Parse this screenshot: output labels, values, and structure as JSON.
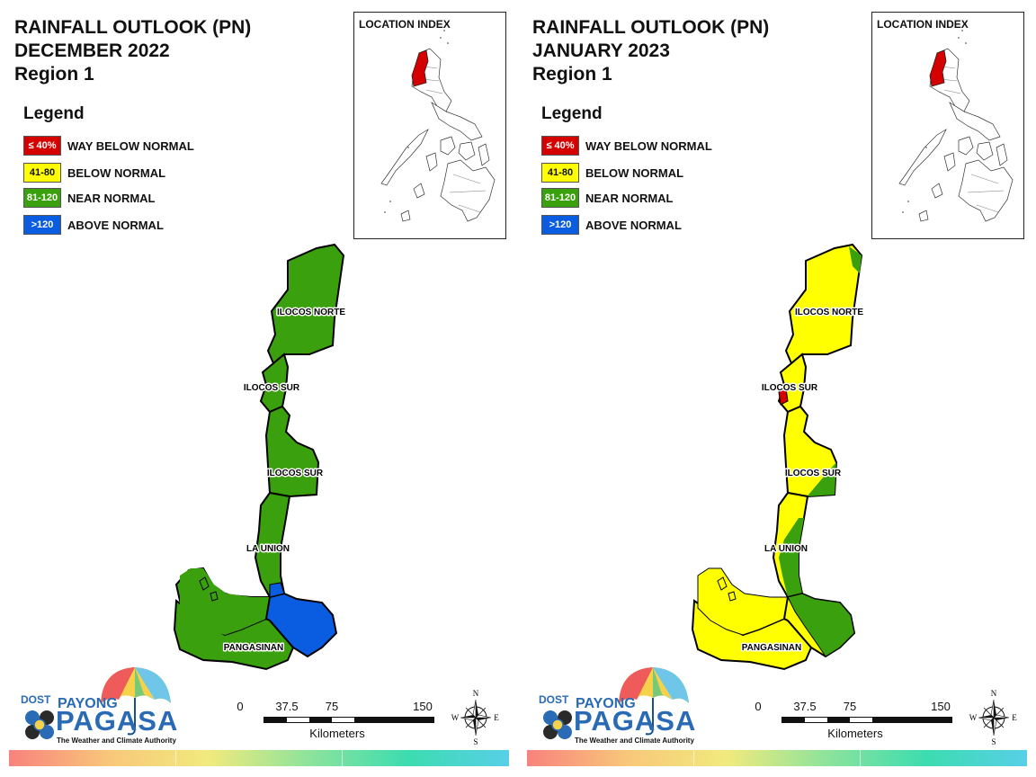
{
  "maps": [
    {
      "title_line1": "RAINFALL OUTLOOK (PN)",
      "title_line2": "DECEMBER 2022",
      "title_line3": "Region 1",
      "legend_title": "Legend",
      "legend": [
        {
          "code": "≤ 40%",
          "label": "WAY BELOW NORMAL",
          "color": "#d50000"
        },
        {
          "code": "41-80",
          "label": "BELOW NORMAL",
          "color": "#ffff00"
        },
        {
          "code": "81-120",
          "label": "NEAR NORMAL",
          "color": "#3aa00d"
        },
        {
          "code": ">120",
          "label": "ABOVE NORMAL",
          "color": "#0a5ce0"
        }
      ],
      "location_index_title": "LOCATION INDEX",
      "province_labels": [
        "ILOCOS NORTE",
        "ILOCOS SUR",
        "ILOCOS SUR",
        "LA UNION",
        "PANGASINAN"
      ],
      "scale": {
        "ticks": [
          "0",
          "37.5",
          "75",
          "150"
        ],
        "units": "Kilometers"
      },
      "compass": {
        "n": "N",
        "e": "E",
        "s": "S",
        "w": "W"
      },
      "logo": {
        "dost": "DOST",
        "payong": "PAYONG",
        "pagasa": "PAGASA",
        "tagline": "The Weather and Climate Authority"
      },
      "outlook": {
        "ilocos_norte": "NEAR NORMAL",
        "ilocos_sur": "NEAR NORMAL",
        "la_union": "NEAR NORMAL",
        "pangasinan_west": "NEAR NORMAL",
        "pangasinan_east": "ABOVE NORMAL"
      }
    },
    {
      "title_line1": "RAINFALL OUTLOOK (PN)",
      "title_line2": "JANUARY 2023",
      "title_line3": "Region 1",
      "legend_title": "Legend",
      "legend": [
        {
          "code": "≤ 40%",
          "label": "WAY BELOW NORMAL",
          "color": "#d50000"
        },
        {
          "code": "41-80",
          "label": "BELOW NORMAL",
          "color": "#ffff00"
        },
        {
          "code": "81-120",
          "label": "NEAR NORMAL",
          "color": "#3aa00d"
        },
        {
          "code": ">120",
          "label": "ABOVE NORMAL",
          "color": "#0a5ce0"
        }
      ],
      "location_index_title": "LOCATION INDEX",
      "province_labels": [
        "ILOCOS NORTE",
        "ILOCOS SUR",
        "ILOCOS SUR",
        "LA UNION",
        "PANGASINAN"
      ],
      "scale": {
        "ticks": [
          "0",
          "37.5",
          "75",
          "150"
        ],
        "units": "Kilometers"
      },
      "compass": {
        "n": "N",
        "e": "E",
        "s": "S",
        "w": "W"
      },
      "logo": {
        "dost": "DOST",
        "payong": "PAYONG",
        "pagasa": "PAGASA",
        "tagline": "The Weather and Climate Authority"
      },
      "outlook": {
        "ilocos_norte": "BELOW NORMAL",
        "ilocos_sur": "BELOW NORMAL",
        "la_union": "BELOW NORMAL",
        "pangasinan_west": "BELOW NORMAL",
        "pangasinan_east": "NEAR NORMAL"
      }
    }
  ]
}
